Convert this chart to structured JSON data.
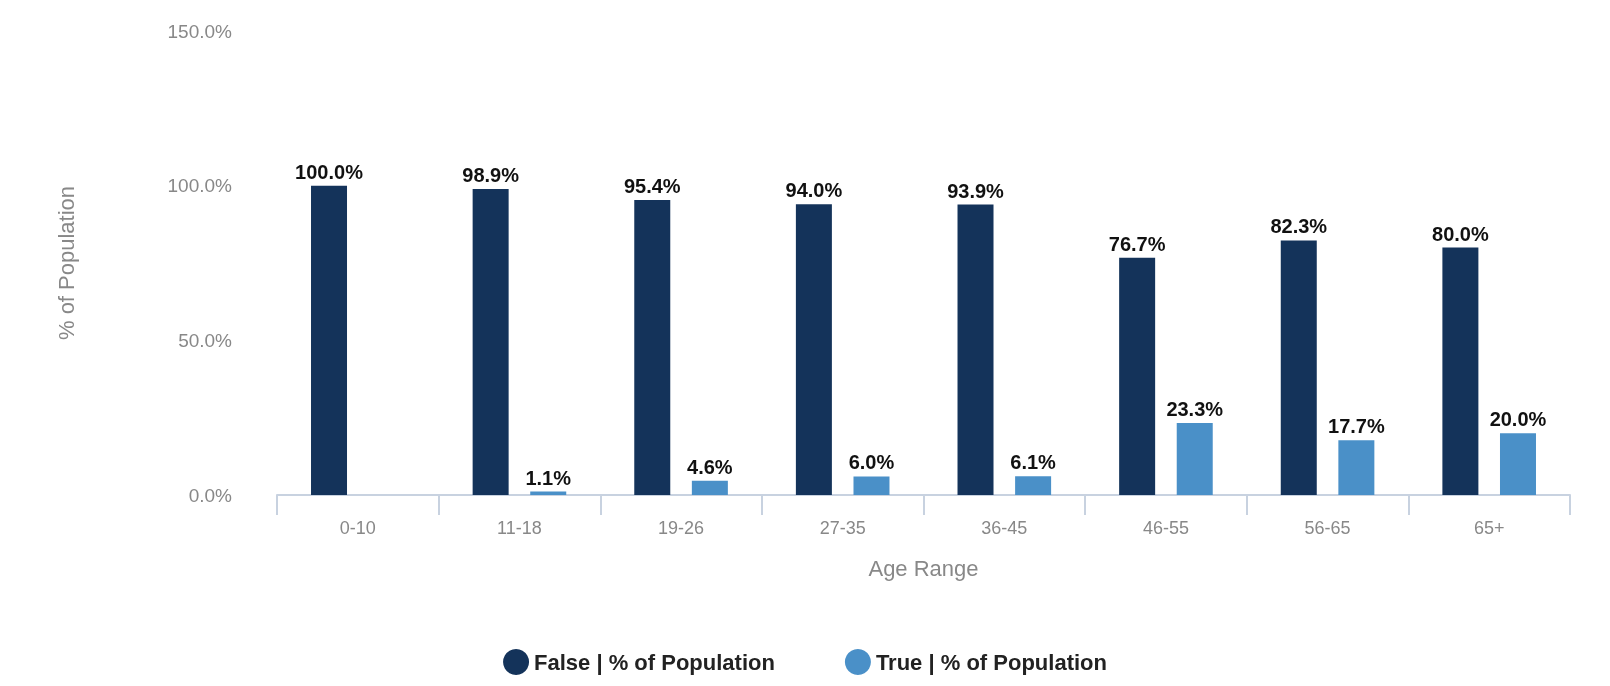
{
  "chart_data": {
    "type": "bar",
    "xlabel": "Age Range",
    "ylabel": "% of Population",
    "categories": [
      "0-10",
      "11-18",
      "19-26",
      "27-35",
      "36-45",
      "46-55",
      "56-65",
      "65+"
    ],
    "series": [
      {
        "name": "False | % of Population",
        "color": "#14335a",
        "values": [
          100.0,
          98.9,
          95.4,
          94.0,
          93.9,
          76.7,
          82.3,
          80.0
        ],
        "value_labels": [
          "100.0%",
          "98.9%",
          "95.4%",
          "94.0%",
          "93.9%",
          "76.7%",
          "82.3%",
          "80.0%"
        ]
      },
      {
        "name": "True | % of Population",
        "color": "#4a90c8",
        "values": [
          null,
          1.1,
          4.6,
          6.0,
          6.1,
          23.3,
          17.7,
          20.0
        ],
        "value_labels": [
          null,
          "1.1%",
          "4.6%",
          "6.0%",
          "6.1%",
          "23.3%",
          "17.7%",
          "20.0%"
        ]
      }
    ],
    "ylim": [
      0,
      150
    ],
    "yticks": [
      {
        "value": 0,
        "label": "0.0%"
      },
      {
        "value": 50,
        "label": "50.0%"
      },
      {
        "value": 100,
        "label": "100.0%"
      },
      {
        "value": 150,
        "label": "150.0%"
      }
    ],
    "grid": false,
    "legend": "bottom"
  }
}
